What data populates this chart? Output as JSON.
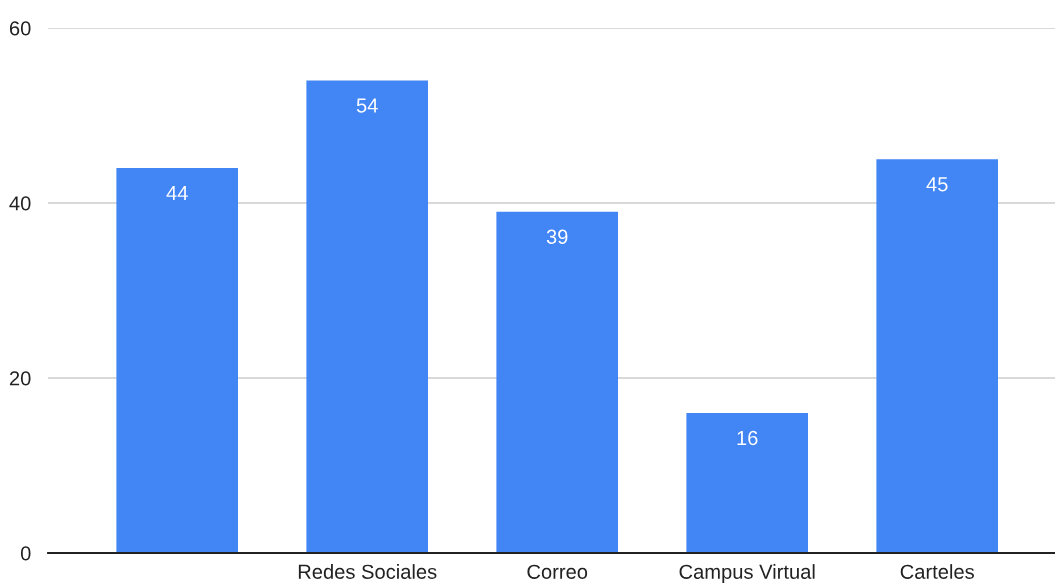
{
  "chart_data": {
    "type": "bar",
    "categories": [
      null,
      "Redes Sociales",
      "Correo",
      "Campus Virtual",
      "Carteles"
    ],
    "values": [
      44,
      54,
      39,
      16,
      45
    ],
    "color": "#4285f4",
    "ylim": [
      0,
      60
    ],
    "yticks": [
      0,
      20,
      40,
      60
    ],
    "grid": "y",
    "data_labels": true
  }
}
